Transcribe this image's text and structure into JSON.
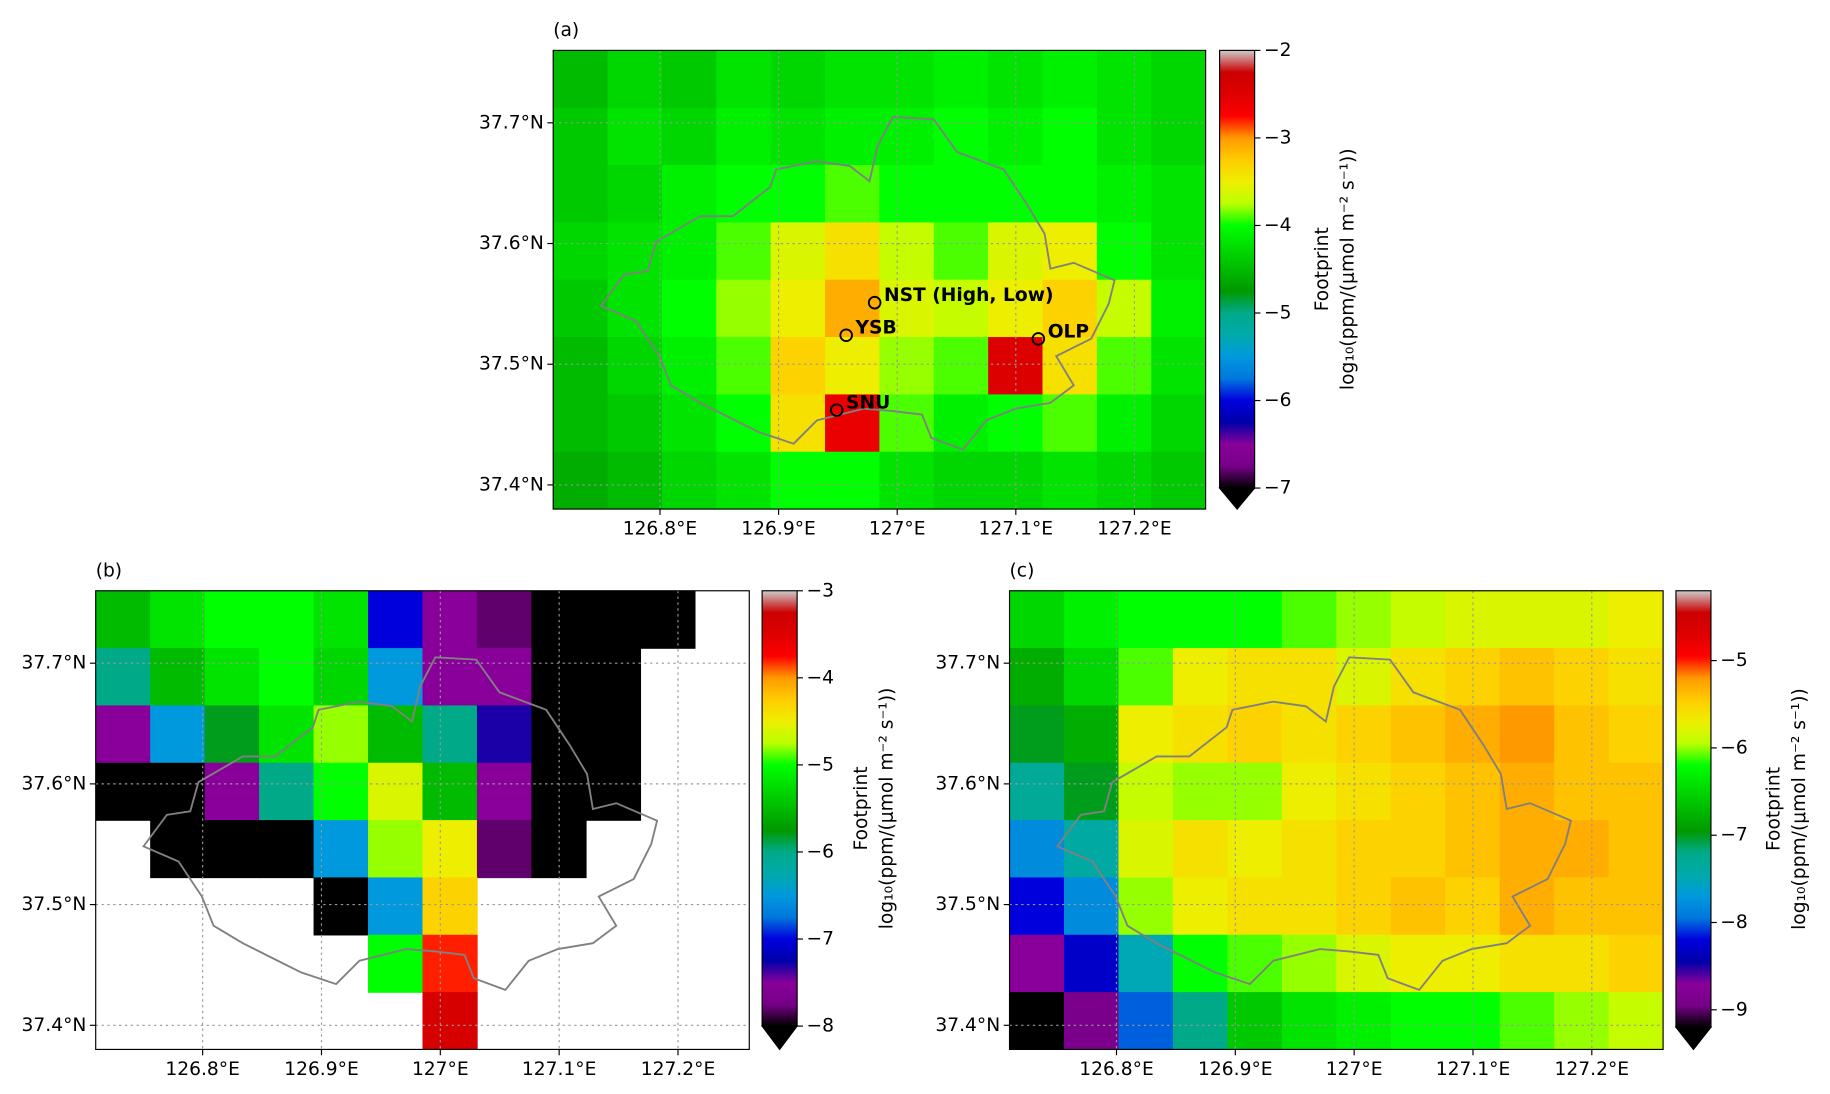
{
  "chart_data": [
    {
      "type": "heatmap",
      "panel_label": "(a)",
      "xlim": [
        126.71,
        127.26
      ],
      "ylim": [
        37.38,
        37.76
      ],
      "xticks": [
        {
          "value": 126.8,
          "label": "126.8°E"
        },
        {
          "value": 126.9,
          "label": "126.9°E"
        },
        {
          "value": 127.0,
          "label": "127°E"
        },
        {
          "value": 127.1,
          "label": "127.1°E"
        },
        {
          "value": 127.2,
          "label": "127.2°E"
        }
      ],
      "yticks": [
        {
          "value": 37.4,
          "label": "37.4°N"
        },
        {
          "value": 37.5,
          "label": "37.5°N"
        },
        {
          "value": 37.6,
          "label": "37.6°N"
        },
        {
          "value": 37.7,
          "label": "37.7°N"
        }
      ],
      "grid": true,
      "z": [
        [
          -4.5,
          -4.3,
          -4.4,
          -4.2,
          -4.3,
          -4.2,
          -4.2,
          -4.1,
          -4.2,
          -4.1,
          -4.2,
          -4.3
        ],
        [
          -4.4,
          -4.2,
          -4.3,
          -4.1,
          -4.2,
          -4.1,
          -4.1,
          -4.0,
          -4.1,
          -4.0,
          -4.2,
          -4.3
        ],
        [
          -4.4,
          -4.3,
          -4.1,
          -4.0,
          -4.0,
          -3.9,
          -4.0,
          -4.0,
          -4.0,
          -4.0,
          -4.1,
          -4.2
        ],
        [
          -4.3,
          -4.2,
          -4.1,
          -3.9,
          -3.6,
          -3.4,
          -3.7,
          -3.9,
          -3.6,
          -3.5,
          -4.0,
          -4.2
        ],
        [
          -4.4,
          -4.2,
          -4.0,
          -3.8,
          -3.5,
          -3.1,
          -3.6,
          -3.7,
          -3.5,
          -3.3,
          -3.7,
          -4.1
        ],
        [
          -4.5,
          -4.3,
          -4.1,
          -3.9,
          -3.3,
          -3.5,
          -3.8,
          -3.9,
          -2.5,
          -3.4,
          -3.9,
          -4.2
        ],
        [
          -4.5,
          -4.4,
          -4.2,
          -4.0,
          -3.4,
          -2.6,
          -3.9,
          -4.1,
          -4.0,
          -3.9,
          -4.1,
          -4.3
        ],
        [
          -4.6,
          -4.5,
          -4.3,
          -4.2,
          -4.0,
          -4.0,
          -4.2,
          -4.3,
          -4.3,
          -4.2,
          -4.3,
          -4.4
        ]
      ],
      "colorbar": {
        "title": "Footprint",
        "label": "log₁₀(ppm/(μmol m⁻² s⁻¹))",
        "lim": [
          -7,
          -2
        ],
        "ticks": [
          {
            "value": -2,
            "label": "−2"
          },
          {
            "value": -3,
            "label": "−3"
          },
          {
            "value": -4,
            "label": "−4"
          },
          {
            "value": -5,
            "label": "−5"
          },
          {
            "value": -6,
            "label": "−6"
          },
          {
            "value": -7,
            "label": "−7"
          }
        ]
      },
      "under_color": "#000000",
      "colormap": [
        "#000000",
        "#770088",
        "#880099",
        "#0000aa",
        "#0000dd",
        "#0077dd",
        "#0099dd",
        "#00aaaa",
        "#00aa88",
        "#009900",
        "#00bb00",
        "#00dd00",
        "#00ff00",
        "#bbff00",
        "#eeee00",
        "#ffcc00",
        "#ff9900",
        "#ff0000",
        "#dd0000",
        "#cc0000",
        "#cccccc"
      ],
      "annotations": [
        {
          "text": "NST (High, Low)",
          "x": 126.981,
          "y": 37.551
        },
        {
          "text": "YSB",
          "x": 126.957,
          "y": 37.524
        },
        {
          "text": "OLP",
          "x": 127.119,
          "y": 37.521
        },
        {
          "text": "SNU",
          "x": 126.949,
          "y": 37.462
        }
      ]
    },
    {
      "type": "heatmap",
      "panel_label": "(b)",
      "xlim": [
        126.71,
        127.26
      ],
      "ylim": [
        37.38,
        37.76
      ],
      "xticks": [
        {
          "value": 126.8,
          "label": "126.8°E"
        },
        {
          "value": 126.9,
          "label": "126.9°E"
        },
        {
          "value": 127.0,
          "label": "127°E"
        },
        {
          "value": 127.1,
          "label": "127.1°E"
        },
        {
          "value": 127.2,
          "label": "127.2°E"
        }
      ],
      "yticks": [
        {
          "value": 37.4,
          "label": "37.4°N"
        },
        {
          "value": 37.5,
          "label": "37.5°N"
        },
        {
          "value": 37.6,
          "label": "37.6°N"
        },
        {
          "value": 37.7,
          "label": "37.7°N"
        }
      ],
      "grid": true,
      "z": [
        [
          -5.5,
          -5.2,
          -5.0,
          -5.0,
          -5.2,
          -7.0,
          -7.5,
          -7.8,
          -9.0,
          -9.0,
          -9.0,
          null
        ],
        [
          -6.0,
          -5.5,
          -5.2,
          -5.0,
          -5.3,
          -6.5,
          -7.5,
          -7.5,
          -9.0,
          -9.0,
          null,
          null
        ],
        [
          -7.5,
          -6.5,
          -5.8,
          -5.2,
          -4.8,
          -5.5,
          -6.0,
          -7.3,
          -9.0,
          -9.0,
          null,
          null
        ],
        [
          -9.0,
          -9.0,
          -7.5,
          -6.0,
          -5.0,
          -4.6,
          -5.5,
          -7.5,
          -9.0,
          -9.0,
          null,
          null
        ],
        [
          null,
          -9.0,
          -9.0,
          -9.0,
          -6.5,
          -4.8,
          -4.5,
          -7.8,
          -9.0,
          null,
          null,
          null
        ],
        [
          null,
          null,
          null,
          null,
          -9.0,
          -6.5,
          -4.3,
          null,
          null,
          null,
          null,
          null
        ],
        [
          null,
          null,
          null,
          null,
          null,
          -5.0,
          -3.8,
          null,
          null,
          null,
          null,
          null
        ],
        [
          null,
          null,
          null,
          null,
          null,
          null,
          -3.4,
          null,
          null,
          null,
          null,
          null
        ]
      ],
      "colorbar": {
        "title": "Footprint",
        "label": "log₁₀(ppm/(μmol m⁻² s⁻¹))",
        "lim": [
          -8,
          -3
        ],
        "ticks": [
          {
            "value": -3,
            "label": "−3"
          },
          {
            "value": -4,
            "label": "−4"
          },
          {
            "value": -5,
            "label": "−5"
          },
          {
            "value": -6,
            "label": "−6"
          },
          {
            "value": -7,
            "label": "−7"
          },
          {
            "value": -8,
            "label": "−8"
          }
        ]
      },
      "under_color": "#000000",
      "colormap": [
        "#000000",
        "#770088",
        "#880099",
        "#0000aa",
        "#0000dd",
        "#0077dd",
        "#0099dd",
        "#00aaaa",
        "#00aa88",
        "#009900",
        "#00bb00",
        "#00dd00",
        "#00ff00",
        "#bbff00",
        "#eeee00",
        "#ffcc00",
        "#ff9900",
        "#ff0000",
        "#dd0000",
        "#cc0000",
        "#cccccc"
      ]
    },
    {
      "type": "heatmap",
      "panel_label": "(c)",
      "xlim": [
        126.71,
        127.26
      ],
      "ylim": [
        37.38,
        37.76
      ],
      "xticks": [
        {
          "value": 126.8,
          "label": "126.8°E"
        },
        {
          "value": 126.9,
          "label": "126.9°E"
        },
        {
          "value": 127.0,
          "label": "127°E"
        },
        {
          "value": 127.1,
          "label": "127.1°E"
        },
        {
          "value": 127.2,
          "label": "127.2°E"
        }
      ],
      "yticks": [
        {
          "value": 37.4,
          "label": "37.4°N"
        },
        {
          "value": 37.5,
          "label": "37.5°N"
        },
        {
          "value": 37.6,
          "label": "37.6°N"
        },
        {
          "value": 37.7,
          "label": "37.7°N"
        }
      ],
      "grid": true,
      "z": [
        [
          -6.5,
          -6.3,
          -6.2,
          -6.2,
          -6.2,
          -6.1,
          -6.0,
          -5.9,
          -5.8,
          -5.8,
          -5.8,
          -5.7
        ],
        [
          -6.8,
          -6.5,
          -6.1,
          -5.7,
          -5.6,
          -5.6,
          -5.8,
          -5.6,
          -5.5,
          -5.4,
          -5.5,
          -5.6
        ],
        [
          -7.0,
          -6.8,
          -5.7,
          -5.6,
          -5.5,
          -5.6,
          -5.5,
          -5.4,
          -5.3,
          -5.2,
          -5.4,
          -5.5
        ],
        [
          -7.3,
          -7.0,
          -5.9,
          -6.0,
          -6.0,
          -5.7,
          -5.6,
          -5.5,
          -5.4,
          -5.3,
          -5.4,
          -5.4
        ],
        [
          -7.8,
          -7.4,
          -5.8,
          -5.6,
          -5.7,
          -5.6,
          -5.5,
          -5.5,
          -5.4,
          -5.3,
          -5.3,
          -5.4
        ],
        [
          -8.2,
          -7.8,
          -6.0,
          -5.7,
          -5.6,
          -5.6,
          -5.5,
          -5.4,
          -5.5,
          -5.3,
          -5.4,
          -5.4
        ],
        [
          -8.7,
          -8.3,
          -7.5,
          -6.2,
          -6.1,
          -6.0,
          -5.8,
          -5.7,
          -5.7,
          -5.6,
          -5.6,
          -5.5
        ],
        [
          -9.5,
          -8.9,
          -8.0,
          -7.2,
          -6.6,
          -6.4,
          -6.3,
          -6.2,
          -6.2,
          -6.1,
          -6.0,
          -5.9
        ]
      ],
      "colorbar": {
        "title": "Footprint",
        "label": "log₁₀(ppm/(μmol m⁻² s⁻¹))",
        "lim": [
          -9.2,
          -4.2
        ],
        "ticks": [
          {
            "value": -5,
            "label": "−5"
          },
          {
            "value": -6,
            "label": "−6"
          },
          {
            "value": -7,
            "label": "−7"
          },
          {
            "value": -8,
            "label": "−8"
          },
          {
            "value": -9,
            "label": "−9"
          }
        ]
      },
      "under_color": "#000000",
      "colormap": [
        "#000000",
        "#770088",
        "#880099",
        "#0000aa",
        "#0000dd",
        "#0077dd",
        "#0099dd",
        "#00aaaa",
        "#00aa88",
        "#009900",
        "#00bb00",
        "#00dd00",
        "#00ff00",
        "#bbff00",
        "#eeee00",
        "#ffcc00",
        "#ff9900",
        "#ff0000",
        "#dd0000",
        "#cc0000",
        "#cccccc"
      ]
    }
  ]
}
